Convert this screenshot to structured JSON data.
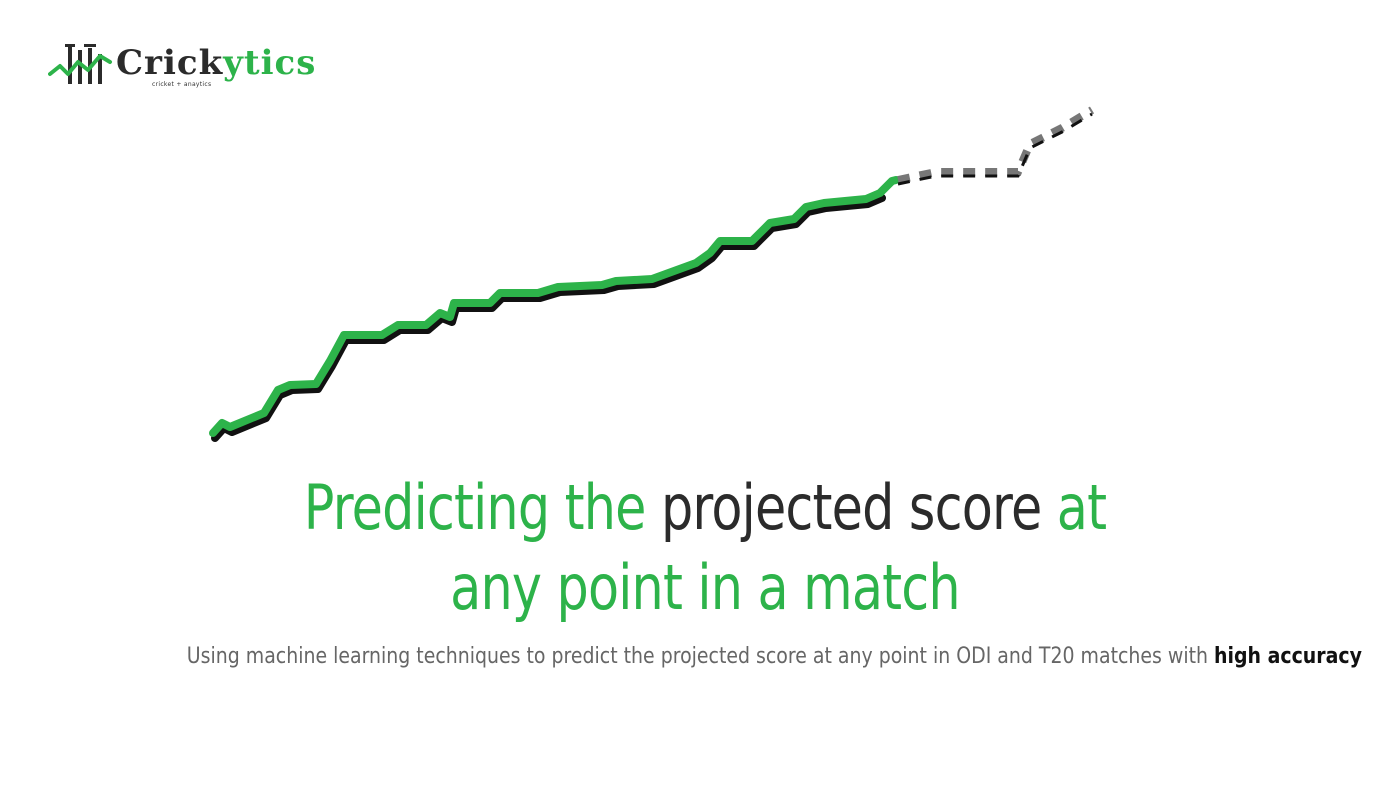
{
  "brand": {
    "name_part1": "Crick",
    "name_part2": "ytics",
    "tagline": "cricket + anaytics"
  },
  "colors": {
    "accent_green": "#2db34a",
    "dark_text": "#2b2b2b",
    "muted_text": "#666666",
    "projection_gray": "#777777"
  },
  "hero": {
    "headline_part1": "Predicting the",
    "headline_part2": "projected score",
    "headline_part3": "at",
    "headline_part4": "any point in a match",
    "subtitle_text": "Using machine learning techniques to predict the projected score at any point in ODI and T20 matches with",
    "subtitle_emphasis": "high accuracy"
  }
}
